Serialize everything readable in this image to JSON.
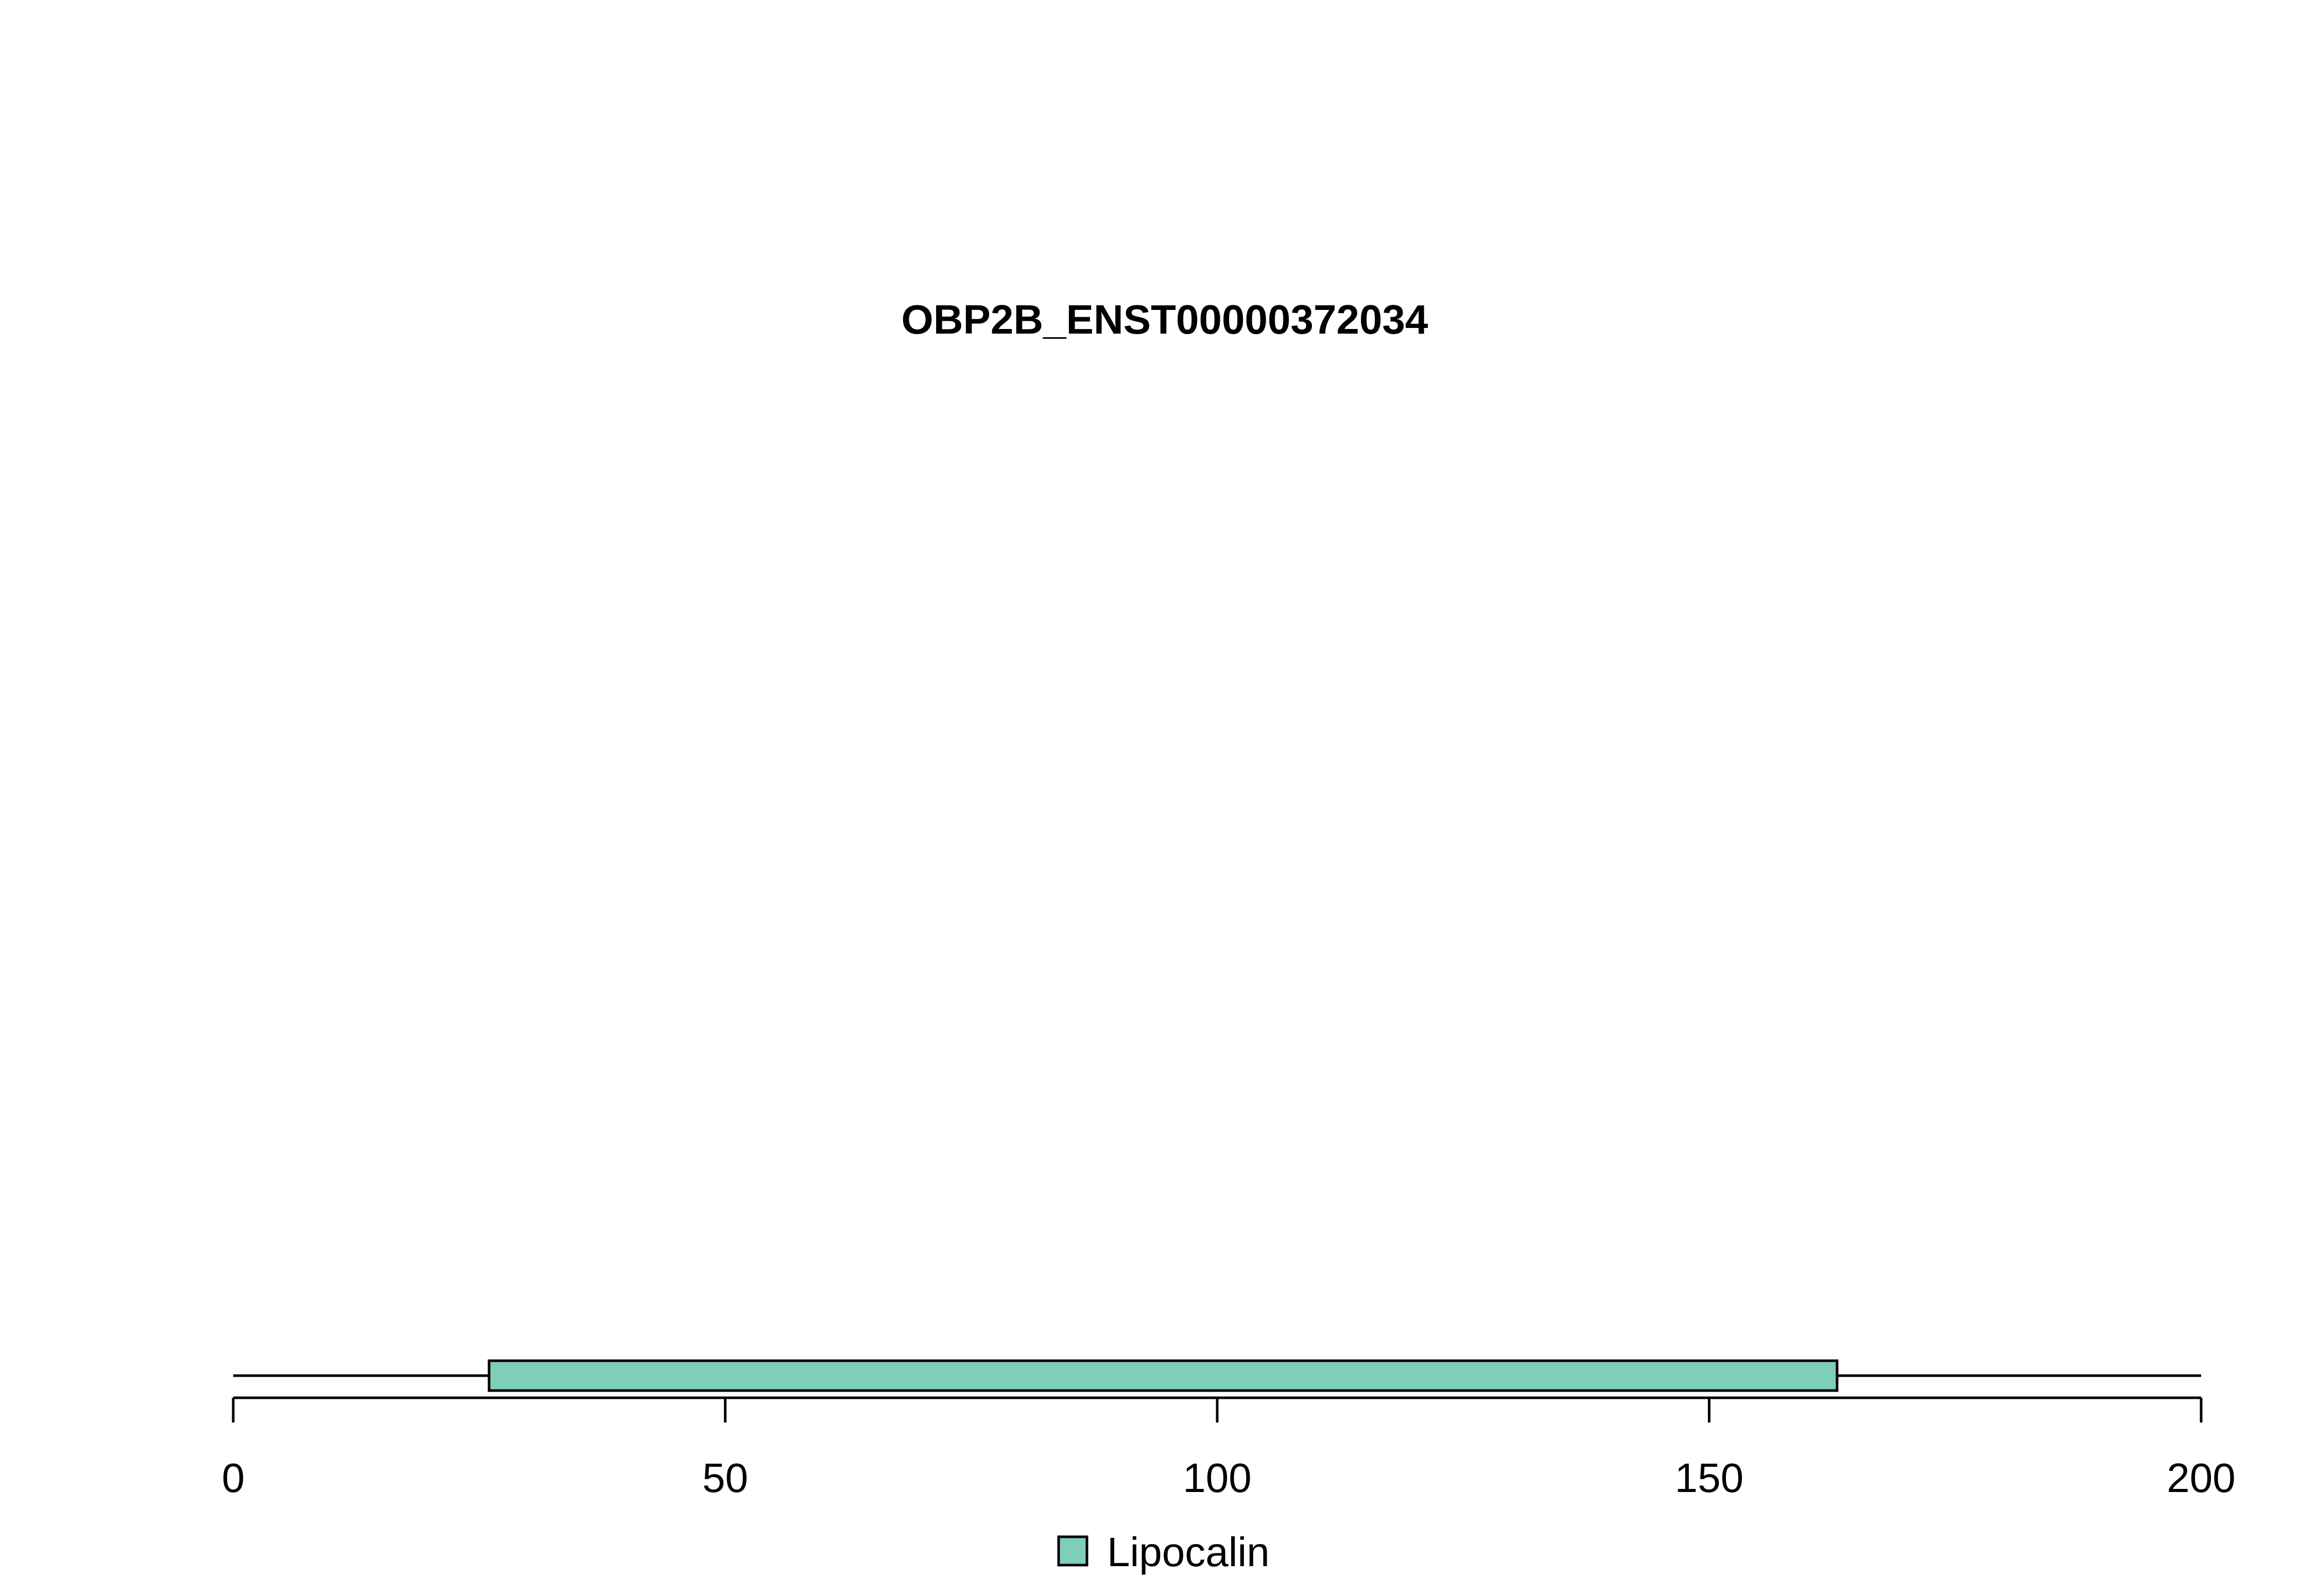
{
  "chart_data": {
    "type": "domain-diagram",
    "title": "OBP2B_ENST00000372034",
    "x_range": [
      0,
      200
    ],
    "protein_length": 200,
    "ticks": [
      0,
      50,
      100,
      150,
      200
    ],
    "tick_labels": [
      "0",
      "50",
      "100",
      "150",
      "200"
    ],
    "domains": [
      {
        "name": "Lipocalin",
        "start": 26,
        "end": 163,
        "color": "#7fcdbb"
      }
    ],
    "legend": {
      "placement": "bottom-center",
      "entries": [
        {
          "label": "Lipocalin",
          "color": "#7fcdbb"
        }
      ]
    }
  }
}
